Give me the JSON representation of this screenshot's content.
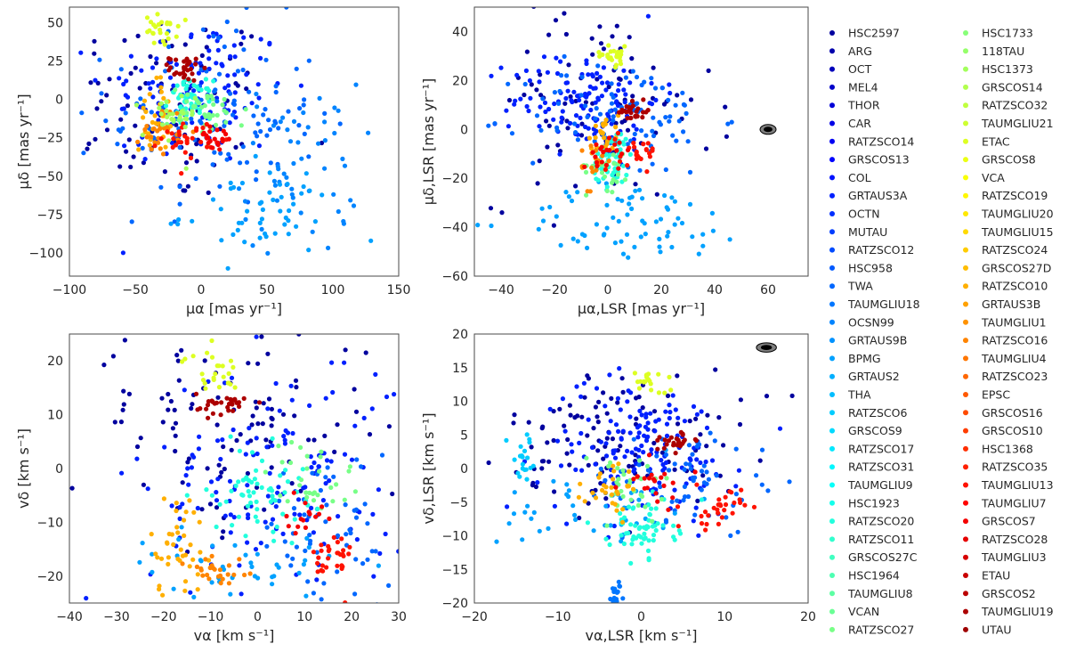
{
  "chart_data": [
    {
      "type": "scatter",
      "id": "pm",
      "xlabel": "μα [mas yr⁻¹]",
      "ylabel": "μδ [mas yr⁻¹]",
      "xlim": [
        -100,
        150
      ],
      "ylim": [
        -115,
        60
      ],
      "xticks": [
        -100,
        -50,
        0,
        50,
        100,
        150
      ],
      "yticks": [
        50,
        25,
        0,
        -25,
        -50,
        -75,
        -100
      ],
      "grid": false,
      "clusters": [
        {
          "group": "HSC2597",
          "cx": -25,
          "cy": -5,
          "sx": 42,
          "sy": 32,
          "n": 90
        },
        {
          "group": "GRTAUS3A",
          "cx": -5,
          "cy": 5,
          "sx": 35,
          "sy": 25,
          "n": 120
        },
        {
          "group": "TWA",
          "cx": 10,
          "cy": -10,
          "sx": 40,
          "sy": 30,
          "n": 120
        },
        {
          "group": "OCSN99",
          "cx": 75,
          "cy": -45,
          "sx": 22,
          "sy": 28,
          "n": 55
        },
        {
          "group": "BPMG",
          "cx": 45,
          "cy": -75,
          "sx": 30,
          "sy": 15,
          "n": 50
        },
        {
          "group": "RATZSCO20",
          "cx": -8,
          "cy": 0,
          "sx": 8,
          "sy": 6,
          "n": 55
        },
        {
          "group": "RATZSCO27",
          "cx": 5,
          "cy": -8,
          "sx": 15,
          "sy": 8,
          "n": 40
        },
        {
          "group": "ETAC",
          "cx": -30,
          "cy": 45,
          "sx": 6,
          "sy": 5,
          "n": 25
        },
        {
          "group": "RATZSCO10",
          "cx": -35,
          "cy": -10,
          "sx": 6,
          "sy": 12,
          "n": 30
        },
        {
          "group": "RATZSCO16",
          "cx": -30,
          "cy": -20,
          "sx": 8,
          "sy": 8,
          "n": 25
        },
        {
          "group": "TAUMGLIU13",
          "cx": -10,
          "cy": -25,
          "sx": 10,
          "sy": 6,
          "n": 30
        },
        {
          "group": "TAUMGLIU19",
          "cx": -12,
          "cy": 20,
          "sx": 6,
          "sy": 4,
          "n": 30
        },
        {
          "group": "HSC1373",
          "cx": -25,
          "cy": -15,
          "sx": 10,
          "sy": 10,
          "n": 25
        },
        {
          "group": "GRSCOS7",
          "cx": 10,
          "cy": -25,
          "sx": 8,
          "sy": 5,
          "n": 20
        }
      ]
    },
    {
      "type": "scatter",
      "id": "pmlsr",
      "xlabel": "μα,LSR [mas yr⁻¹]",
      "ylabel": "μδ,LSR [mas yr⁻¹]",
      "xlim": [
        -50,
        75
      ],
      "ylim": [
        -60,
        50
      ],
      "xticks": [
        -40,
        -20,
        0,
        20,
        40,
        60
      ],
      "yticks": [
        40,
        20,
        0,
        -20,
        -40,
        -60
      ],
      "grid": false,
      "ellipse": {
        "x": 60,
        "y": 0,
        "rx": 3,
        "ry": 2
      },
      "clusters": [
        {
          "group": "HSC2597",
          "cx": -5,
          "cy": 10,
          "sx": 22,
          "sy": 20,
          "n": 90
        },
        {
          "group": "GRTAUS3A",
          "cx": -8,
          "cy": 12,
          "sx": 14,
          "sy": 10,
          "n": 130
        },
        {
          "group": "TWA",
          "cx": 5,
          "cy": 5,
          "sx": 18,
          "sy": 12,
          "n": 100
        },
        {
          "group": "BPMG",
          "cx": 10,
          "cy": -38,
          "sx": 22,
          "sy": 8,
          "n": 70
        },
        {
          "group": "RATZSCO20",
          "cx": 2,
          "cy": -12,
          "sx": 4,
          "sy": 6,
          "n": 50
        },
        {
          "group": "RATZSCO27",
          "cx": 0,
          "cy": -15,
          "sx": 4,
          "sy": 5,
          "n": 25
        },
        {
          "group": "ETAC",
          "cx": 2,
          "cy": 30,
          "sx": 3,
          "sy": 2,
          "n": 25
        },
        {
          "group": "RATZSCO10",
          "cx": -2,
          "cy": -2,
          "sx": 3,
          "sy": 5,
          "n": 25
        },
        {
          "group": "RATZSCO16",
          "cx": -6,
          "cy": -15,
          "sx": 2,
          "sy": 5,
          "n": 15
        },
        {
          "group": "TAUMGLIU13",
          "cx": 12,
          "cy": -8,
          "sx": 4,
          "sy": 4,
          "n": 25
        },
        {
          "group": "TAUMGLIU19",
          "cx": 10,
          "cy": 7,
          "sx": 3,
          "sy": 2,
          "n": 25
        },
        {
          "group": "GRSCOS7",
          "cx": 0,
          "cy": -8,
          "sx": 5,
          "sy": 3,
          "n": 20
        }
      ]
    },
    {
      "type": "scatter",
      "id": "vel",
      "xlabel": "vα [km s⁻¹]",
      "ylabel": "vδ [km s⁻¹]",
      "xlim": [
        -40,
        30
      ],
      "ylim": [
        -25,
        25
      ],
      "xticks": [
        -40,
        -30,
        -20,
        -10,
        0,
        10,
        20,
        30
      ],
      "yticks": [
        20,
        10,
        0,
        -10,
        -20
      ],
      "grid": false,
      "clusters": [
        {
          "group": "HSC2597",
          "cx": -8,
          "cy": 8,
          "sx": 16,
          "sy": 10,
          "n": 110
        },
        {
          "group": "GRTAUS3A",
          "cx": 5,
          "cy": -2,
          "sx": 14,
          "sy": 12,
          "n": 150
        },
        {
          "group": "TWA",
          "cx": 15,
          "cy": -12,
          "sx": 7,
          "sy": 8,
          "n": 60
        },
        {
          "group": "BPMG",
          "cx": -5,
          "cy": -18,
          "sx": 12,
          "sy": 3,
          "n": 40
        },
        {
          "group": "RATZSCO20",
          "cx": 0,
          "cy": -4,
          "sx": 5,
          "sy": 4,
          "n": 60
        },
        {
          "group": "RATZSCO27",
          "cx": 12,
          "cy": -2,
          "sx": 5,
          "sy": 4,
          "n": 30
        },
        {
          "group": "ETAC",
          "cx": -10,
          "cy": 18,
          "sx": 3,
          "sy": 2,
          "n": 25
        },
        {
          "group": "RATZSCO10",
          "cx": -17,
          "cy": -14,
          "sx": 3,
          "sy": 5,
          "n": 40
        },
        {
          "group": "RATZSCO16",
          "cx": -8,
          "cy": -19,
          "sx": 4,
          "sy": 2,
          "n": 25
        },
        {
          "group": "TAUMGLIU13",
          "cx": 16,
          "cy": -17,
          "sx": 2,
          "sy": 3,
          "n": 30
        },
        {
          "group": "TAUMGLIU19",
          "cx": -7,
          "cy": 12,
          "sx": 3,
          "sy": 1,
          "n": 30
        },
        {
          "group": "GRSCOS7",
          "cx": 10,
          "cy": -10,
          "sx": 2,
          "sy": 2,
          "n": 15
        }
      ]
    },
    {
      "type": "scatter",
      "id": "vellsr",
      "xlabel": "vα,LSR [km s⁻¹]",
      "ylabel": "vδ,LSR [km s⁻¹]",
      "xlim": [
        -20,
        20
      ],
      "ylim": [
        -20,
        20
      ],
      "xticks": [
        -20,
        -10,
        0,
        10,
        20
      ],
      "yticks": [
        20,
        15,
        10,
        5,
        0,
        -5,
        -10,
        -15,
        -20
      ],
      "grid": false,
      "ellipse": {
        "x": 15,
        "y": 18,
        "rx": 1.2,
        "ry": 0.7
      },
      "clusters": [
        {
          "group": "HSC2597",
          "cx": -2,
          "cy": 5,
          "sx": 7,
          "sy": 5,
          "n": 110
        },
        {
          "group": "GRTAUS3A",
          "cx": 0,
          "cy": 3,
          "sx": 6,
          "sy": 5,
          "n": 150
        },
        {
          "group": "TWA",
          "cx": 5,
          "cy": -2,
          "sx": 6,
          "sy": 4,
          "n": 70
        },
        {
          "group": "BPMG",
          "cx": -5,
          "cy": -6,
          "sx": 6,
          "sy": 3,
          "n": 40
        },
        {
          "group": "RATZSCO20",
          "cx": 0,
          "cy": -9,
          "sx": 2,
          "sy": 2,
          "n": 60
        },
        {
          "group": "RATZSCO27",
          "cx": -2,
          "cy": -3,
          "sx": 3,
          "sy": 3,
          "n": 30
        },
        {
          "group": "RATZSCO6",
          "cx": -14,
          "cy": 1,
          "sx": 1,
          "sy": 2,
          "n": 20
        },
        {
          "group": "ETAC",
          "cx": 1,
          "cy": 13,
          "sx": 1,
          "sy": 1,
          "n": 20
        },
        {
          "group": "RATZSCO10",
          "cx": -3,
          "cy": -3,
          "sx": 2,
          "sy": 2,
          "n": 30
        },
        {
          "group": "TAUMGLIU13",
          "cx": 9,
          "cy": -6,
          "sx": 1.5,
          "sy": 1.5,
          "n": 30
        },
        {
          "group": "TAUMGLIU19",
          "cx": 4,
          "cy": 4,
          "sx": 1.5,
          "sy": 0.7,
          "n": 25
        },
        {
          "group": "TAUMGLIU18",
          "cx": -3,
          "cy": -19,
          "sx": 0.5,
          "sy": 1,
          "n": 20
        },
        {
          "group": "GRSCOS7",
          "cx": 2,
          "cy": -2,
          "sx": 2,
          "sy": 2,
          "n": 20
        }
      ]
    }
  ],
  "legend": {
    "position": "right",
    "columns": [
      [
        "HSC2597",
        "ARG",
        "OCT",
        "MEL4",
        "THOR",
        "CAR",
        "RATZSCO14",
        "GRSCOS13",
        "COL",
        "GRTAUS3A",
        "OCTN",
        "MUTAU",
        "RATZSCO12",
        "HSC958",
        "TWA",
        "TAUMGLIU18",
        "OCSN99",
        "GRTAUS9B",
        "BPMG",
        "GRTAUS2",
        "THA",
        "RATZSCO6",
        "GRSCOS9",
        "RATZSCO17",
        "RATZSCO31",
        "TAUMGLIU9",
        "HSC1923",
        "RATZSCO20",
        "RATZSCO11",
        "GRSCOS27C",
        "HSC1964",
        "TAUMGLIU8",
        "VCAN",
        "RATZSCO27"
      ],
      [
        "HSC1733",
        "118TAU",
        "HSC1373",
        "GRSCOS14",
        "RATZSCO32",
        "TAUMGLIU21",
        "ETAC",
        "GRSCOS8",
        "VCA",
        "RATZSCO19",
        "TAUMGLIU20",
        "TAUMGLIU15",
        "RATZSCO24",
        "GRSCOS27D",
        "RATZSCO10",
        "GRTAUS3B",
        "TAUMGLIU1",
        "RATZSCO16",
        "TAUMGLIU4",
        "RATZSCO23",
        "EPSC",
        "GRSCOS16",
        "GRSCOS10",
        "HSC1368",
        "RATZSCO35",
        "TAUMGLIU13",
        "TAUMGLIU7",
        "GRSCOS7",
        "RATZSCO28",
        "TAUMGLIU3",
        "ETAU",
        "GRSCOS2",
        "TAUMGLIU19",
        "UTAU"
      ]
    ],
    "colormap": "jet"
  }
}
